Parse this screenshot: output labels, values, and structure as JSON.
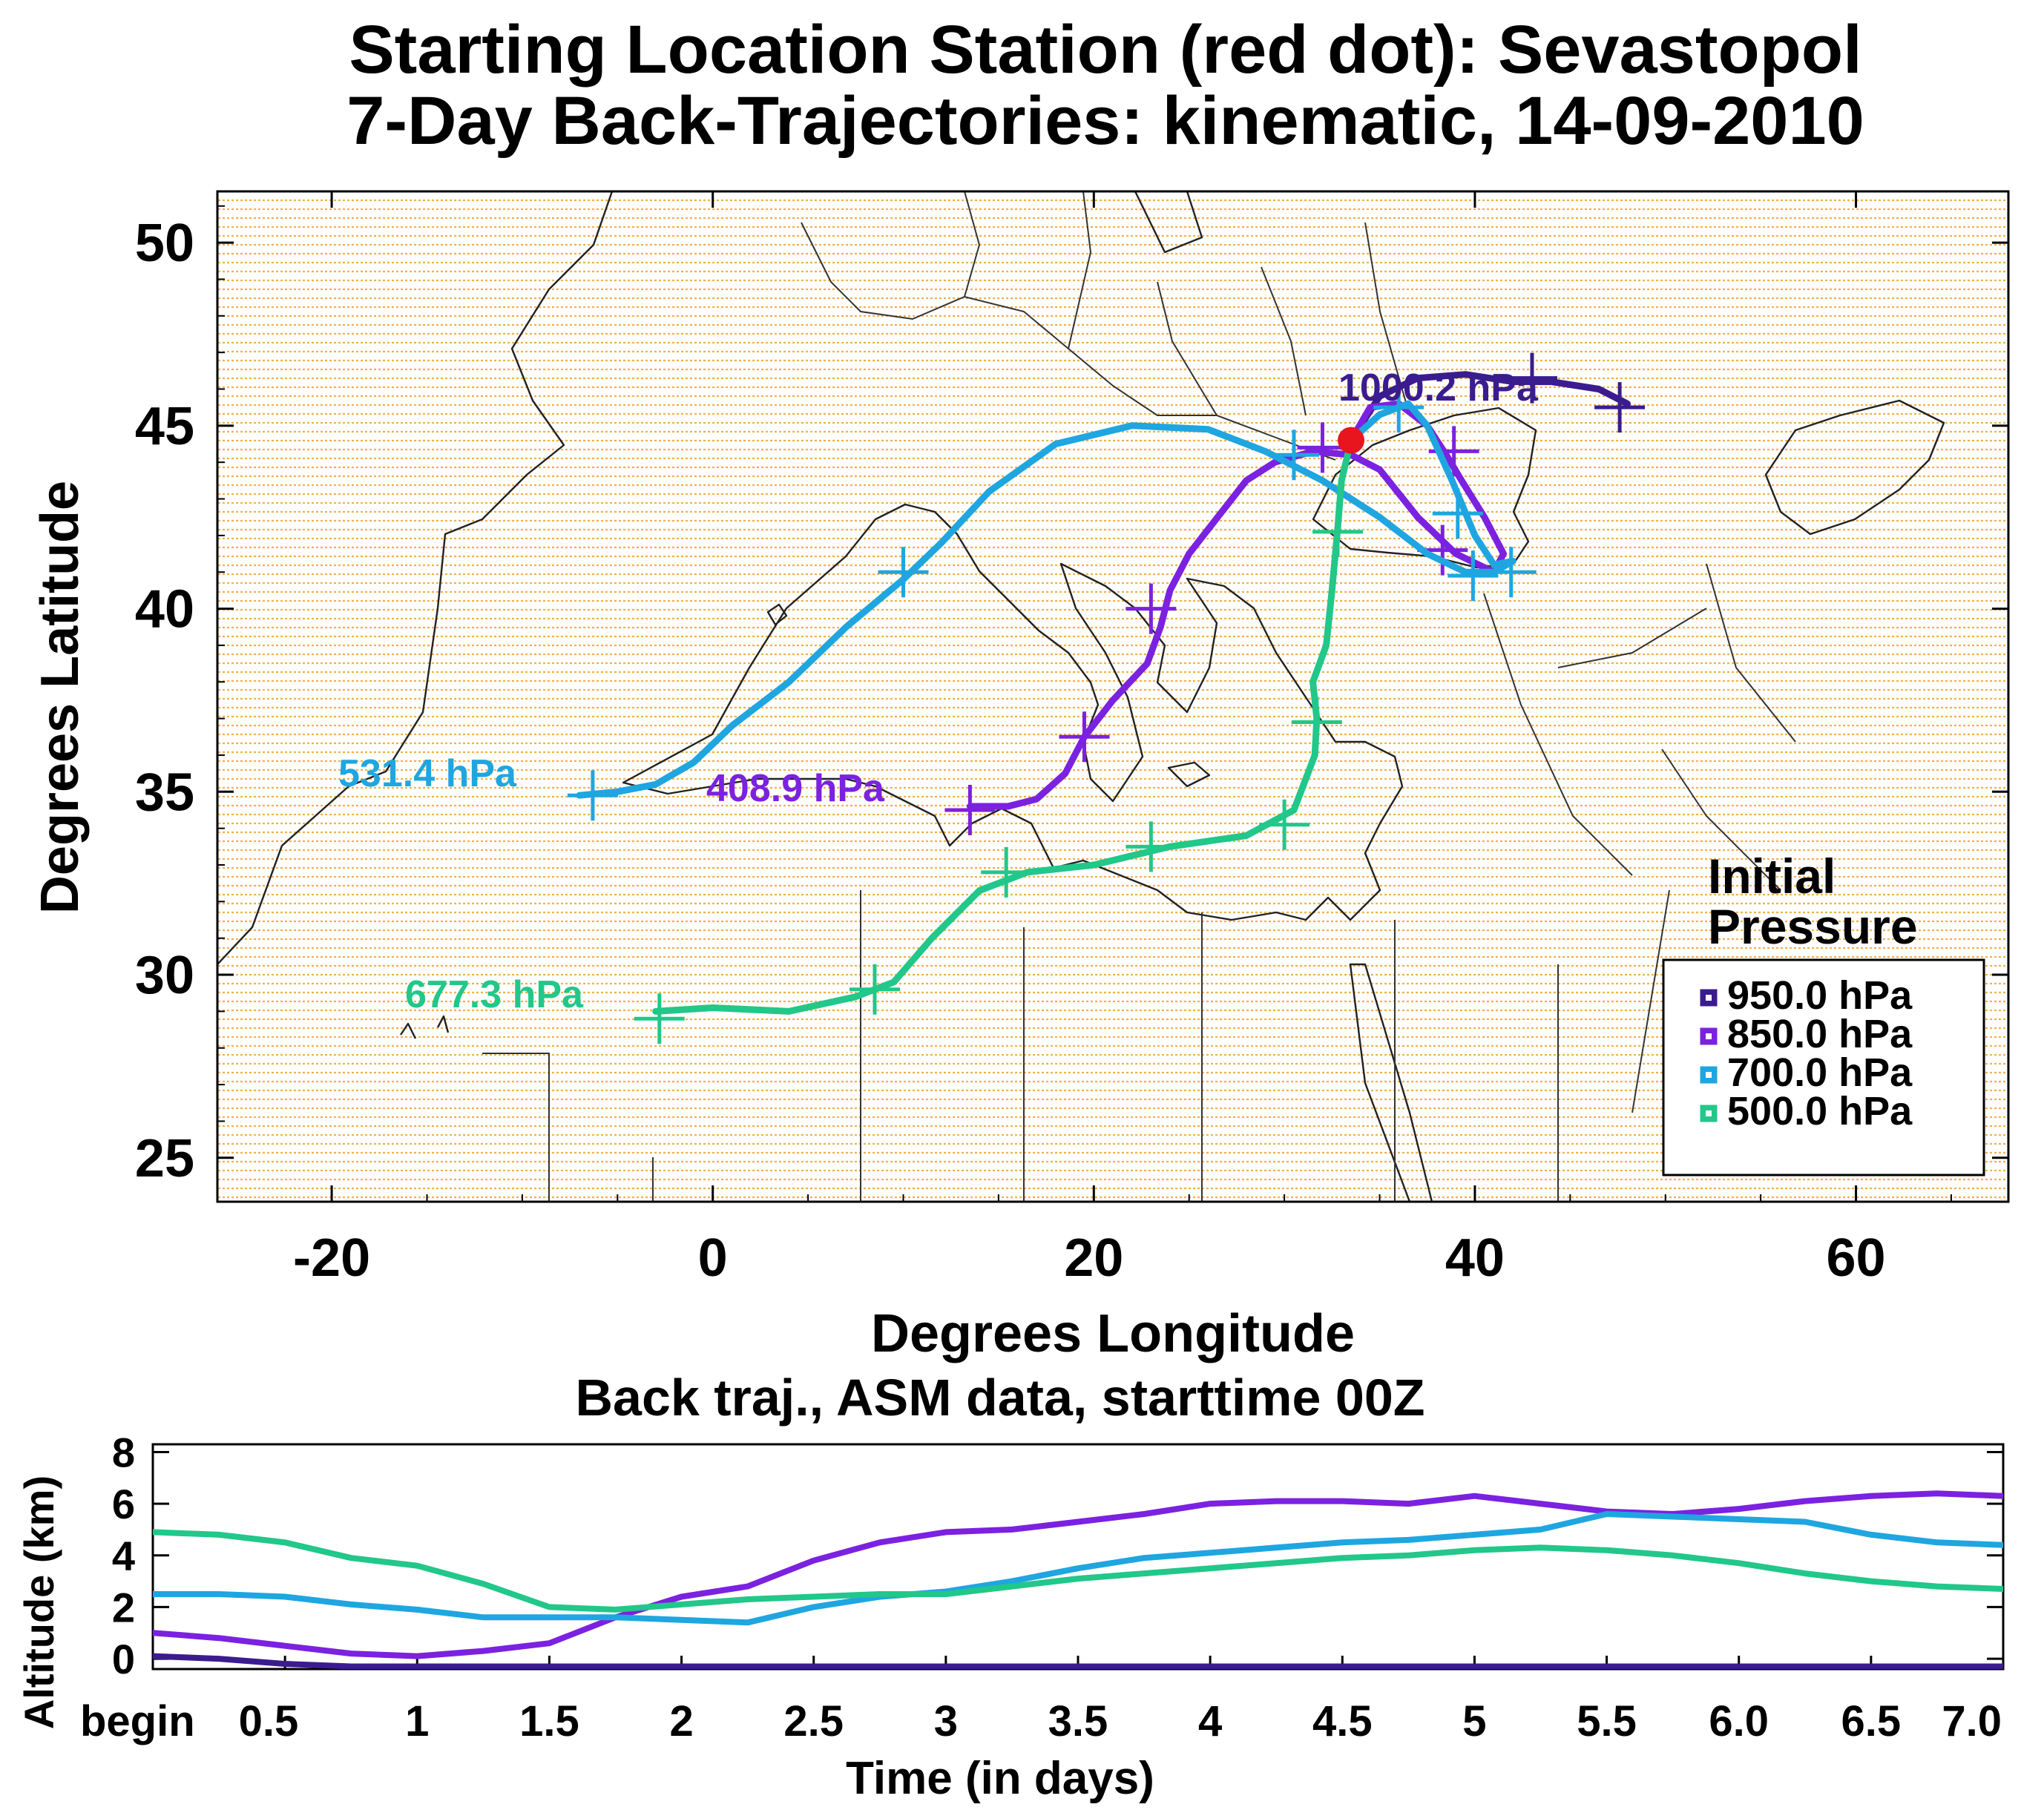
{
  "chart_data": [
    {
      "type": "line",
      "subtype": "trajectory-map",
      "title_line1": "Starting Location Station (red dot):  Sevastopol",
      "title_line2": "7-Day Back-Trajectories: kinematic, 14-09-2010",
      "xlabel": "Degrees Longitude",
      "ylabel": "Degrees Latitude",
      "xlim": [
        -26,
        68
      ],
      "ylim": [
        23.8,
        51.4
      ],
      "x_ticks": [
        "-20",
        "0",
        "20",
        "40",
        "60"
      ],
      "y_ticks": [
        "25",
        "30",
        "35",
        "40",
        "45",
        "50"
      ],
      "start_point": {
        "lon": 33.5,
        "lat": 44.6,
        "color": "#e8141e",
        "name": "Sevastopol"
      },
      "legend_title_line1": "Initial",
      "legend_title_line2": "Pressure",
      "legend_position": "lower-right",
      "series": [
        {
          "name": "950.0 hPa",
          "color": "#3b1c8f",
          "end_label": "1000.2 hPa",
          "lon": [
            33.5,
            35.0,
            37.0,
            39.5,
            42.0,
            44.0,
            46.5,
            48.0
          ],
          "lat": [
            44.6,
            45.8,
            46.3,
            46.4,
            46.2,
            46.2,
            46.0,
            45.6
          ],
          "marks": [
            [
              43.0,
              46.3
            ],
            [
              47.6,
              45.5
            ]
          ]
        },
        {
          "name": "850.0 hPa",
          "color": "#7b22e0",
          "end_label": "408.9 hPa",
          "lon": [
            33.5,
            34.5,
            36.0,
            37.5,
            38.5,
            39.3,
            40.5,
            41.5,
            41.0,
            39.0,
            37.0,
            35.0,
            33.5,
            31.5,
            29.5,
            28.0,
            26.5,
            25.0,
            24.0,
            23.5,
            22.8,
            21.0,
            19.5,
            18.5,
            17.0,
            15.5,
            13.5
          ],
          "lat": [
            44.6,
            45.5,
            45.6,
            45.0,
            44.2,
            43.5,
            42.5,
            41.5,
            41.0,
            41.5,
            42.5,
            43.8,
            44.2,
            44.3,
            44.0,
            43.5,
            42.5,
            41.5,
            40.5,
            39.5,
            38.5,
            37.5,
            36.5,
            35.5,
            34.8,
            34.6,
            34.6
          ],
          "marks": [
            [
              32.0,
              44.4
            ],
            [
              38.9,
              44.3
            ],
            [
              38.3,
              41.6
            ],
            [
              23.0,
              40.0
            ],
            [
              19.5,
              36.5
            ],
            [
              13.5,
              34.5
            ]
          ]
        },
        {
          "name": "700.0 hPa",
          "color": "#1fa6e0",
          "end_label": "531.4 hPa",
          "lon": [
            33.5,
            35.0,
            36.5,
            37.5,
            38.8,
            40.0,
            41.0,
            42.0,
            41.0,
            39.5,
            37.5,
            35.0,
            32.0,
            29.0,
            26.0,
            22.0,
            18.0,
            14.5,
            12.0,
            10.0,
            7.0,
            4.0,
            1.0,
            -1.0,
            -3.0,
            -5.0,
            -7.0
          ],
          "lat": [
            44.6,
            45.3,
            45.6,
            45.0,
            43.5,
            42.0,
            41.2,
            41.3,
            41.0,
            41.0,
            41.5,
            42.5,
            43.5,
            44.3,
            44.9,
            45.0,
            44.5,
            43.2,
            41.8,
            40.8,
            39.5,
            38.0,
            36.8,
            35.8,
            35.2,
            35.0,
            34.9
          ],
          "marks": [
            [
              30.5,
              44.2
            ],
            [
              36.0,
              45.5
            ],
            [
              39.1,
              42.6
            ],
            [
              39.9,
              40.9
            ],
            [
              41.9,
              41.0
            ],
            [
              10.0,
              41.0
            ],
            [
              -6.3,
              34.9
            ]
          ]
        },
        {
          "name": "500.0 hPa",
          "color": "#22c78a",
          "end_label": "677.3 hPa",
          "lon": [
            33.5,
            33.0,
            32.8,
            32.5,
            32.2,
            31.5,
            31.7,
            31.6,
            30.5,
            28.0,
            24.0,
            20.0,
            16.5,
            14.0,
            11.5,
            9.5,
            7.5,
            4.0,
            0.0,
            -3.0
          ],
          "lat": [
            44.6,
            43.5,
            42.2,
            40.5,
            39.0,
            38.0,
            37.0,
            36.0,
            34.5,
            33.8,
            33.5,
            33.0,
            32.8,
            32.3,
            31.0,
            29.8,
            29.4,
            29.0,
            29.1,
            29.0
          ],
          "marks": [
            [
              32.8,
              42.1
            ],
            [
              31.7,
              36.9
            ],
            [
              30.0,
              34.1
            ],
            [
              23.0,
              33.5
            ],
            [
              15.4,
              32.8
            ],
            [
              8.5,
              29.6
            ],
            [
              -2.8,
              28.8
            ]
          ]
        }
      ]
    },
    {
      "type": "line",
      "title": "Back traj., ASM data, starttime 00Z",
      "xlabel": "Time (in days)",
      "ylabel": "Altitude (km)",
      "xlim": [
        0,
        7
      ],
      "ylim": [
        -0.4,
        8.3
      ],
      "x_ticks": [
        "begin",
        "0.5",
        "1",
        "1.5",
        "2",
        "2.5",
        "3",
        "3.5",
        "4",
        "4.5",
        "5",
        "5.5",
        "6.0",
        "6.5",
        "7.0"
      ],
      "y_ticks": [
        "0",
        "2",
        "4",
        "6",
        "8"
      ],
      "x": [
        0.0,
        0.25,
        0.5,
        0.75,
        1.0,
        1.25,
        1.5,
        1.75,
        2.0,
        2.25,
        2.5,
        2.75,
        3.0,
        3.25,
        3.5,
        3.75,
        4.0,
        4.25,
        4.5,
        4.75,
        5.0,
        5.25,
        5.5,
        5.75,
        6.0,
        6.25,
        6.5,
        6.75,
        7.0
      ],
      "series": [
        {
          "name": "950.0 hPa",
          "color": "#3b1c8f",
          "values": [
            0.1,
            0.0,
            -0.2,
            -0.3,
            -0.3,
            -0.3,
            -0.3,
            -0.3,
            -0.3,
            -0.3,
            -0.3,
            -0.3,
            -0.3,
            -0.3,
            -0.3,
            -0.3,
            -0.3,
            -0.3,
            -0.3,
            -0.3,
            -0.3,
            -0.3,
            -0.3,
            -0.3,
            -0.3,
            -0.3,
            -0.3,
            -0.3,
            -0.3
          ]
        },
        {
          "name": "850.0 hPa",
          "color": "#7b22e0",
          "values": [
            1.0,
            0.8,
            0.5,
            0.2,
            0.1,
            0.3,
            0.6,
            1.6,
            2.4,
            2.8,
            3.8,
            4.5,
            4.9,
            5.0,
            5.3,
            5.6,
            6.0,
            6.1,
            6.1,
            6.0,
            6.3,
            6.0,
            5.7,
            5.6,
            5.8,
            6.1,
            6.3,
            6.4,
            6.3
          ]
        },
        {
          "name": "700.0 hPa",
          "color": "#1fa6e0",
          "values": [
            2.5,
            2.5,
            2.4,
            2.1,
            1.9,
            1.6,
            1.6,
            1.6,
            1.5,
            1.4,
            2.0,
            2.4,
            2.6,
            3.0,
            3.5,
            3.9,
            4.1,
            4.3,
            4.5,
            4.6,
            4.8,
            5.0,
            5.6,
            5.5,
            5.4,
            5.3,
            4.8,
            4.5,
            4.4
          ]
        },
        {
          "name": "500.0 hPa",
          "color": "#22c78a",
          "values": [
            4.9,
            4.8,
            4.5,
            3.9,
            3.6,
            2.9,
            2.0,
            1.9,
            2.1,
            2.3,
            2.4,
            2.5,
            2.5,
            2.8,
            3.1,
            3.3,
            3.5,
            3.7,
            3.9,
            4.0,
            4.2,
            4.3,
            4.2,
            4.0,
            3.7,
            3.3,
            3.0,
            2.8,
            2.7
          ]
        }
      ]
    }
  ]
}
